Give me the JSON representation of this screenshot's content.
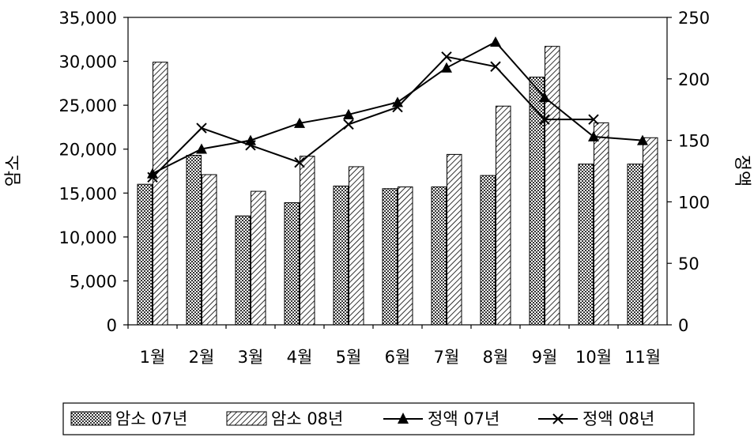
{
  "chart_data": {
    "type": "bar",
    "categories": [
      "1월",
      "2월",
      "3월",
      "4월",
      "5월",
      "6월",
      "7월",
      "8월",
      "9월",
      "10월",
      "11월"
    ],
    "ylabel": "암소",
    "y2label": "정액",
    "ylim": [
      0,
      35000
    ],
    "y2lim": [
      0,
      250
    ],
    "yticks": [
      "0",
      "5,000",
      "10,000",
      "15,000",
      "20,000",
      "25,000",
      "30,000",
      "35,000"
    ],
    "y2ticks": [
      "0",
      "50",
      "100",
      "150",
      "200",
      "250"
    ],
    "grid": false,
    "legend_position": "bottom",
    "series": [
      {
        "name": "암소 07년",
        "type": "bar",
        "axis": "left",
        "fill": "crosshatch",
        "values": [
          16000,
          19300,
          12400,
          13900,
          15800,
          15500,
          15700,
          17000,
          28200,
          18300,
          18300
        ]
      },
      {
        "name": "암소 08년",
        "type": "bar",
        "axis": "left",
        "fill": "diagonal",
        "values": [
          29900,
          17100,
          15200,
          19200,
          18000,
          15700,
          19400,
          24900,
          31700,
          23000,
          21300
        ]
      },
      {
        "name": "정액 07년",
        "type": "line",
        "axis": "right",
        "marker": "triangle",
        "values": [
          123,
          143,
          150,
          164,
          171,
          181,
          209,
          230,
          185,
          153,
          150
        ]
      },
      {
        "name": "정액 08년",
        "type": "line",
        "axis": "right",
        "marker": "x",
        "values": [
          120,
          160,
          146,
          132,
          163,
          177,
          218,
          210,
          167,
          167,
          null
        ]
      }
    ],
    "colors": {
      "bar07": "#555555",
      "bar08": "#ffffff",
      "line": "#000000"
    }
  }
}
